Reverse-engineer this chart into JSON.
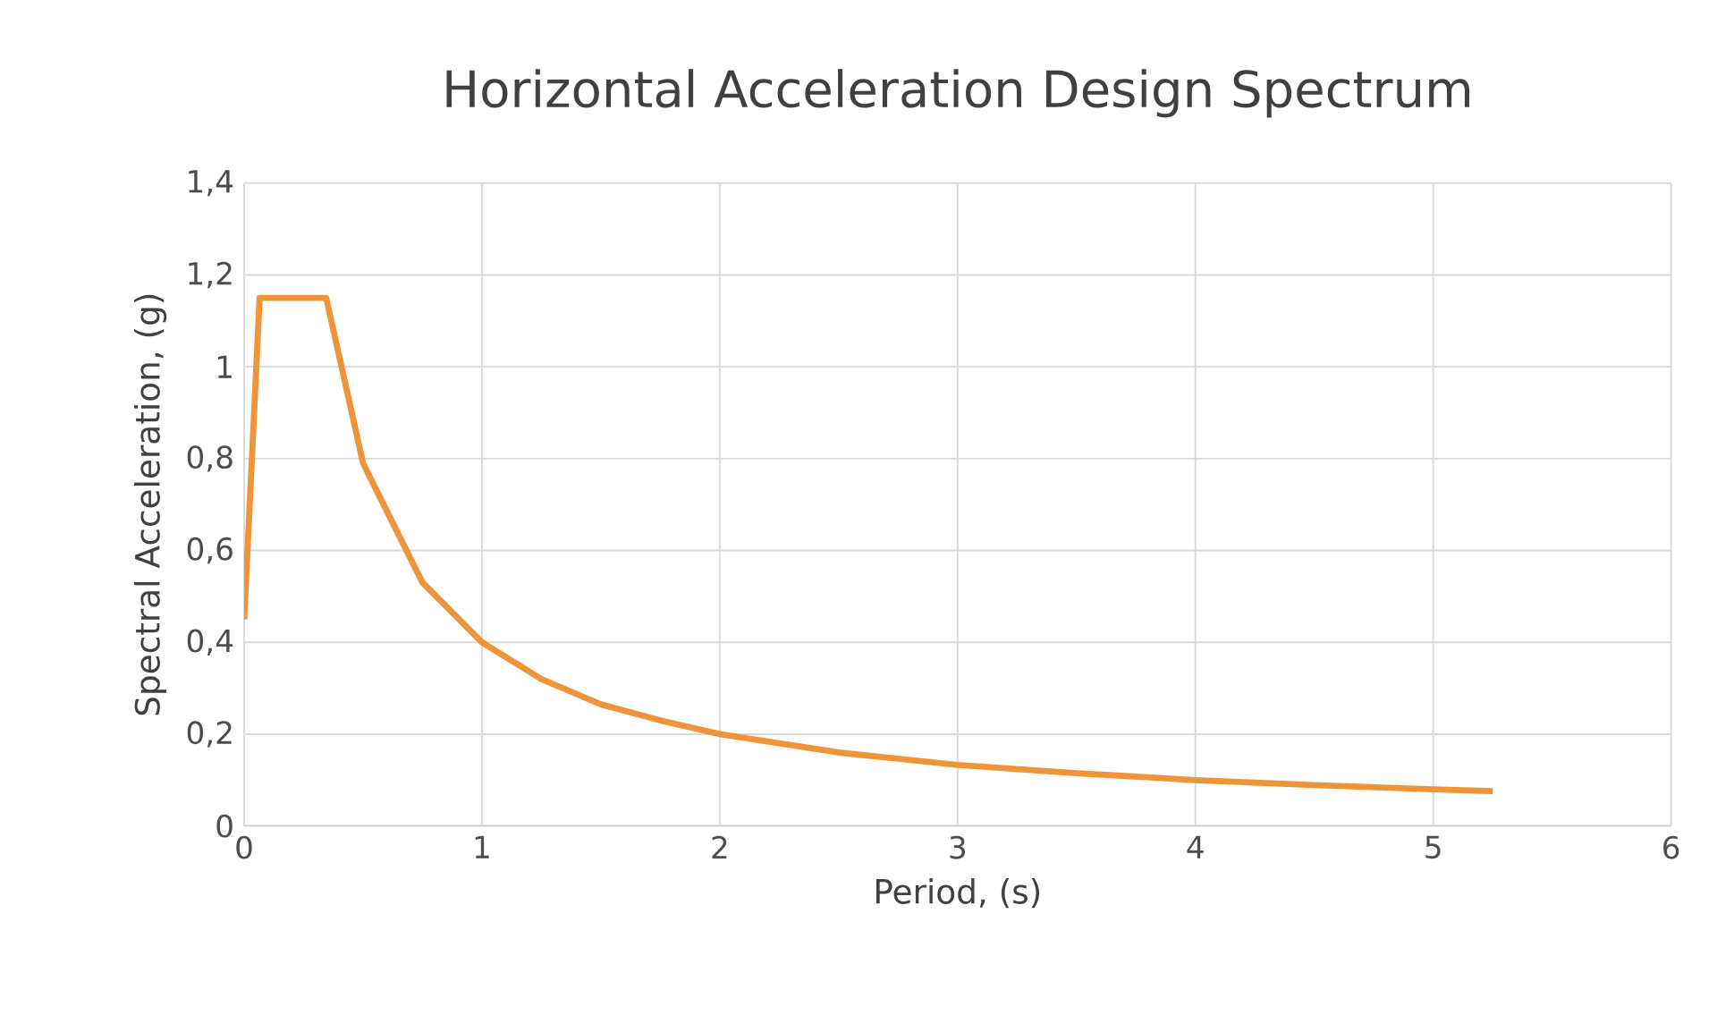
{
  "chart_data": {
    "type": "line",
    "title": "Horizontal Acceleration Design Spectrum",
    "xlabel": "Period, (s)",
    "ylabel": "Spectral Acceleration, (g)",
    "series": [
      {
        "color": "#f0943a",
        "x": [
          0,
          0.065,
          0.345,
          0.5,
          0.75,
          1.0,
          1.25,
          1.5,
          1.75,
          2.0,
          2.5,
          3.0,
          3.5,
          4.0,
          4.5,
          5.0,
          5.25
        ],
        "values": [
          0.45,
          1.15,
          1.15,
          0.79,
          0.53,
          0.4,
          0.32,
          0.265,
          0.23,
          0.2,
          0.16,
          0.133,
          0.115,
          0.1,
          0.089,
          0.08,
          0.076
        ]
      }
    ],
    "xlim": [
      0,
      6
    ],
    "xticks": [
      0,
      1,
      2,
      3,
      4,
      5,
      6
    ],
    "ylim": [
      0,
      1.4
    ],
    "yticks": [
      0,
      {
        "value": 0.2,
        "label": "0,2"
      },
      {
        "value": 0.4,
        "label": "0,4"
      },
      {
        "value": 0.6,
        "label": "0,6"
      },
      {
        "value": 0.8,
        "label": "0,8"
      },
      1,
      {
        "value": 1.2,
        "label": "1,2"
      },
      {
        "value": 1.4,
        "label": "1,4"
      }
    ],
    "grid": true,
    "marker": "none",
    "line_style": "solid"
  }
}
